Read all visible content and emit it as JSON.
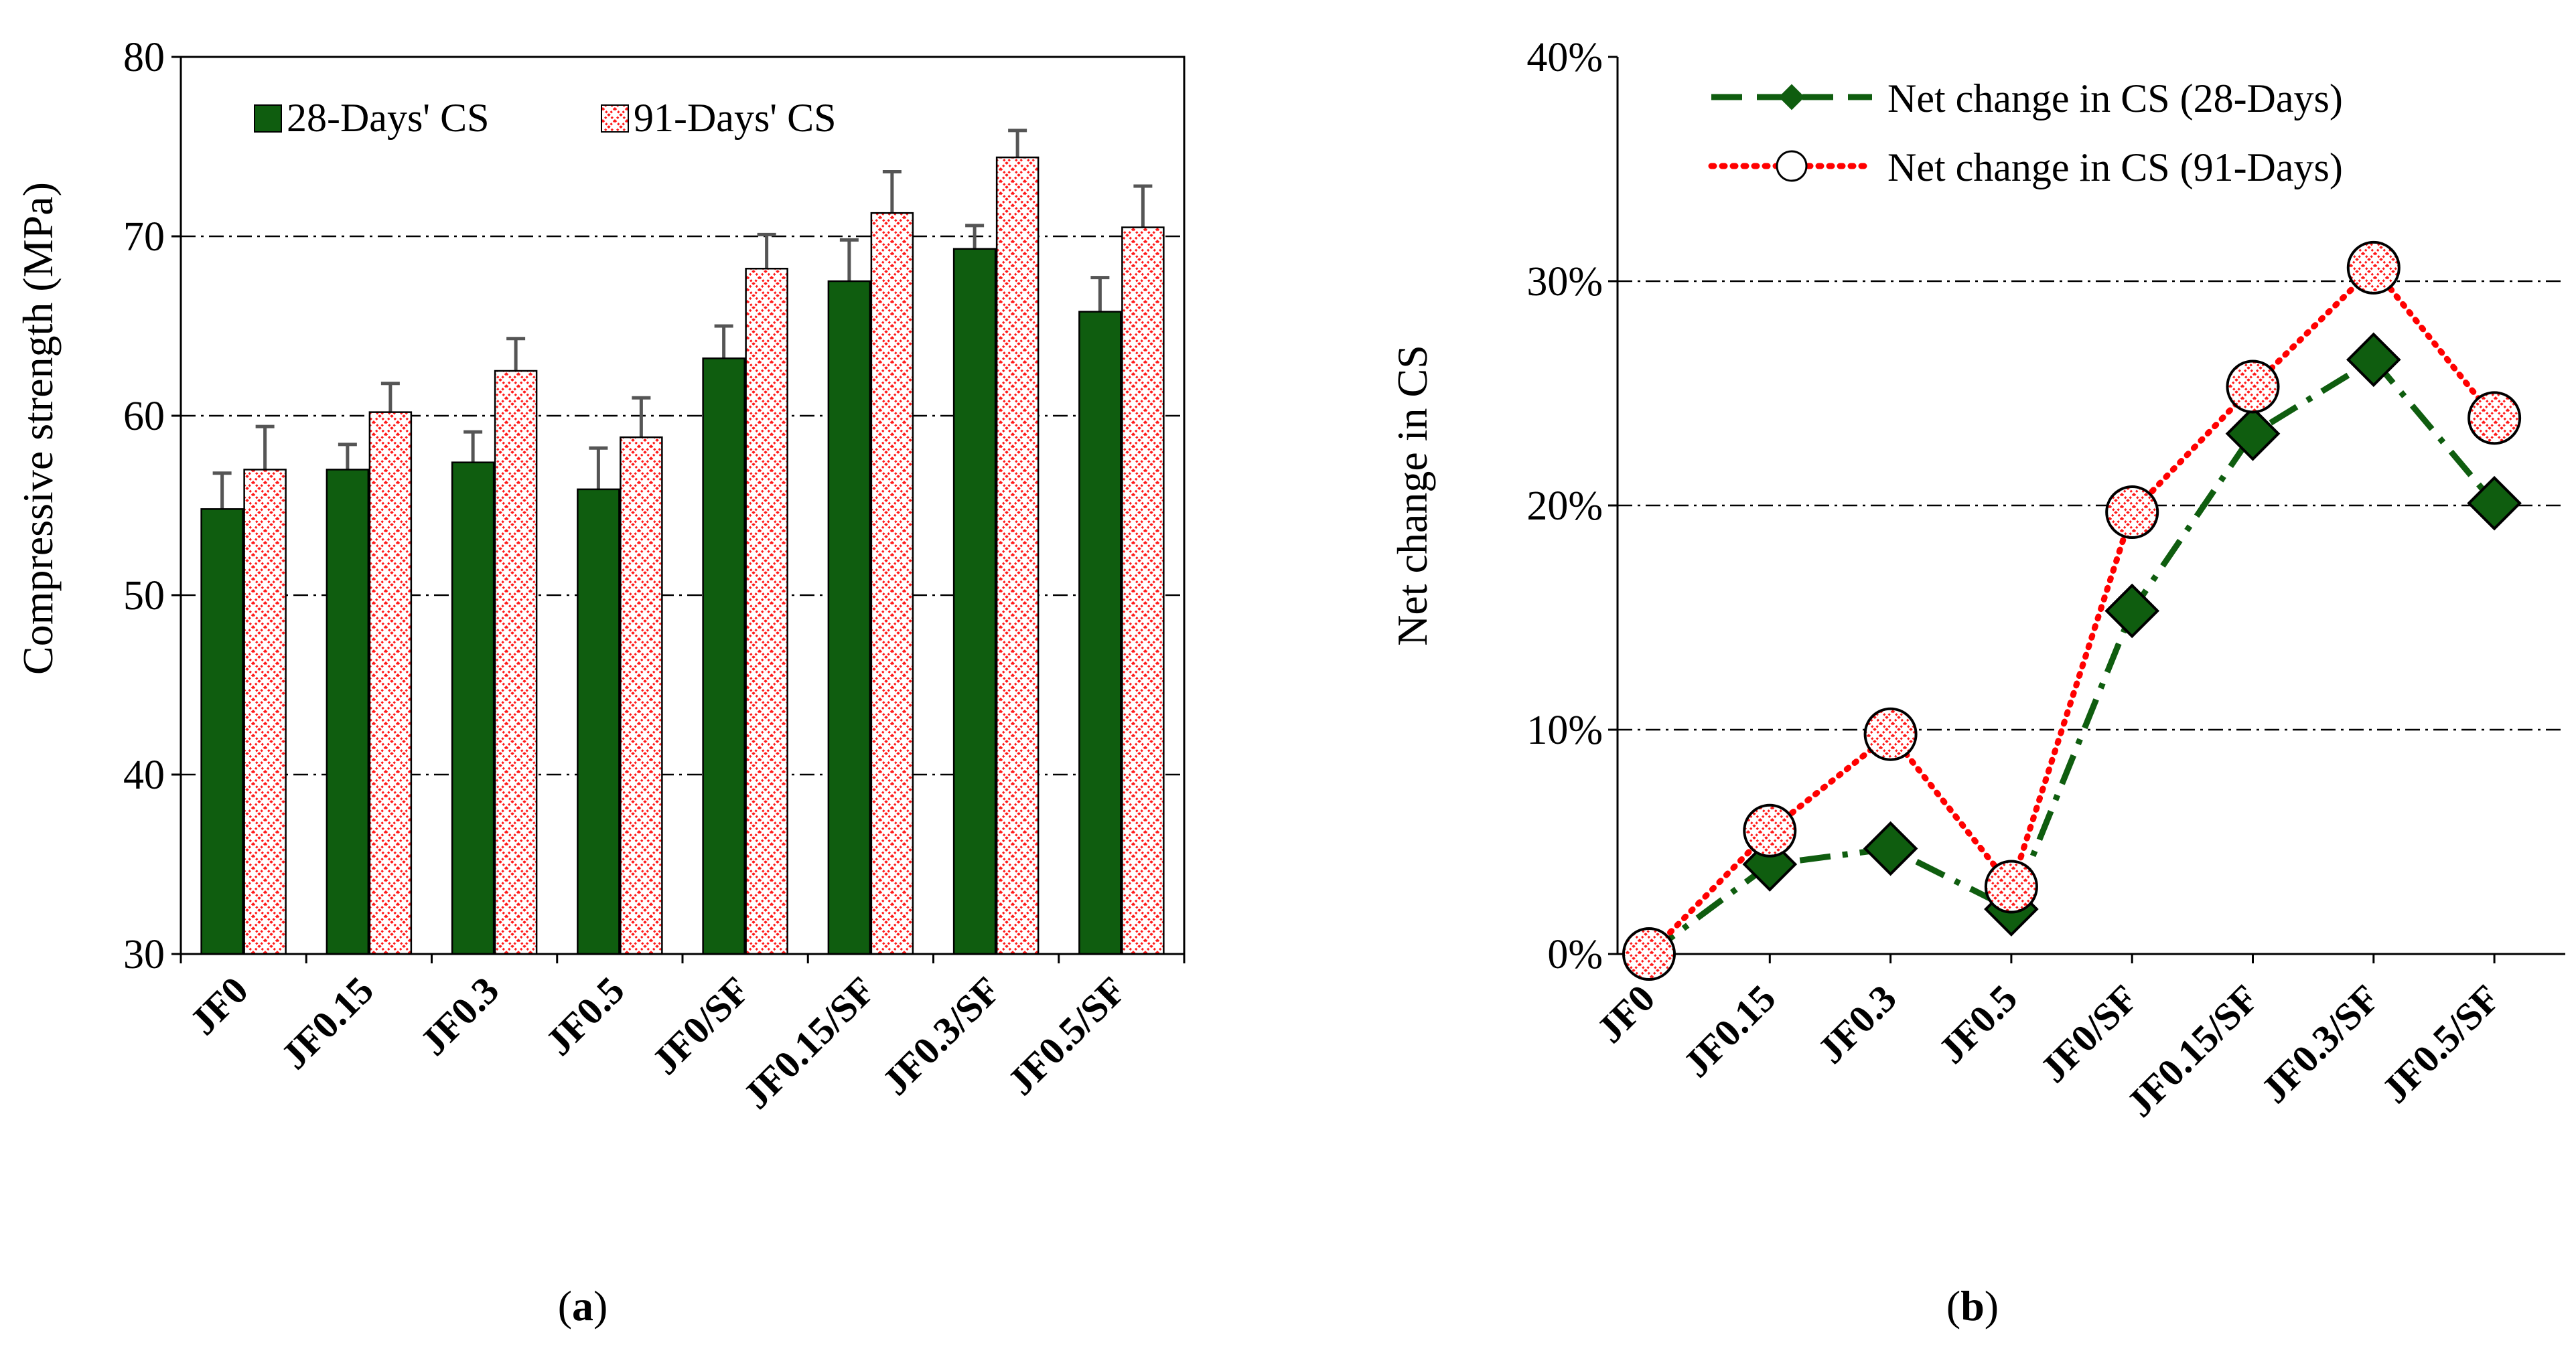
{
  "chart_data": [
    {
      "type": "bar",
      "panel_label": "a",
      "ylabel": "Compressive strength (MPa)",
      "xlabel": "",
      "ylim": [
        30,
        80
      ],
      "yticks": [
        "30",
        "40",
        "50",
        "60",
        "70",
        "80"
      ],
      "ytick_values": [
        30,
        40,
        50,
        60,
        70,
        80
      ],
      "categories": [
        "JF0",
        "JF0.15",
        "JF0.3",
        "JF0.5",
        "JF0/SF",
        "JF0.15/SF",
        "JF0.3/SF",
        "JF0.5/SF"
      ],
      "series": [
        {
          "name": "28-Days' CS",
          "values": [
            54.8,
            57.0,
            57.4,
            55.9,
            63.2,
            67.5,
            69.3,
            65.8
          ],
          "errors": [
            2.0,
            1.4,
            1.7,
            2.3,
            1.8,
            2.3,
            1.3,
            1.9
          ],
          "color": "#0f5d0f"
        },
        {
          "name": "91-Days' CS",
          "values": [
            57.0,
            60.2,
            62.5,
            58.8,
            68.2,
            71.3,
            74.4,
            70.5
          ],
          "errors": [
            2.4,
            1.6,
            1.8,
            2.2,
            1.9,
            2.3,
            1.5,
            2.3
          ],
          "color": "#ff0000"
        }
      ],
      "grid": true,
      "legend": "top-left"
    },
    {
      "type": "line",
      "panel_label": "b",
      "ylabel": "Net change in CS",
      "xlabel": "",
      "ylim": [
        0,
        40
      ],
      "yticks": [
        "0%",
        "10%",
        "20%",
        "30%",
        "40%"
      ],
      "ytick_values": [
        0,
        10,
        20,
        30,
        40
      ],
      "categories": [
        "JF0",
        "JF0.15",
        "JF0.3",
        "JF0.5",
        "JF0/SF",
        "JF0.15/SF",
        "JF0.3/SF",
        "JF0.5/SF"
      ],
      "series": [
        {
          "name": "Net change in CS (28-Days)",
          "values": [
            0,
            4.0,
            4.7,
            2.0,
            15.3,
            23.2,
            26.5,
            20.1
          ],
          "color": "#0f5d0f"
        },
        {
          "name": "Net change in CS (91-Days)",
          "values": [
            0,
            5.5,
            9.8,
            3.0,
            19.7,
            25.3,
            30.6,
            23.9
          ],
          "color": "#ff0000"
        }
      ],
      "grid": true,
      "legend": "top-center"
    }
  ]
}
